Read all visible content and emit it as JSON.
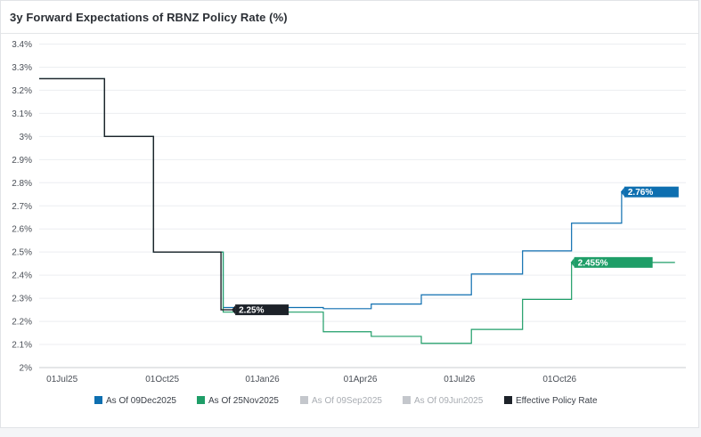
{
  "chart_data": {
    "type": "line",
    "title": "3y Forward Expectations of RBNZ Policy Rate (%)",
    "y_ticks": [
      "3.4%",
      "3.3%",
      "3.2%",
      "3.1%",
      "3%",
      "2.9%",
      "2.8%",
      "2.7%",
      "2.6%",
      "2.5%",
      "2.4%",
      "2.3%",
      "2.2%",
      "2.1%",
      "2%"
    ],
    "ylim": [
      2.0,
      3.4
    ],
    "x_ticks": [
      "01Jul25",
      "01Oct25",
      "01Jan26",
      "01Apr26",
      "01Jul26",
      "01Oct26"
    ],
    "x_tick_dates": [
      "2025-07-01",
      "2025-10-01",
      "2026-01-01",
      "2026-04-01",
      "2026-07-01",
      "2026-10-01"
    ],
    "xlim": [
      "2025-06-10",
      "2027-01-25"
    ],
    "grid": true,
    "legend_position": "bottom",
    "series": [
      {
        "name": "As Of 09Dec2025",
        "color": "#0e6fb0",
        "visible": true,
        "x": [
          "2025-06-10",
          "2025-08-09",
          "2025-09-23",
          "2025-09-23",
          "2025-11-24",
          "2025-11-26",
          "2026-02-15",
          "2026-02-26",
          "2026-04-11",
          "2026-05-27",
          "2026-07-12",
          "2026-08-28",
          "2026-10-12",
          "2026-11-27",
          "2027-01-15"
        ],
        "y": [
          3.25,
          3.0,
          3.0,
          2.5,
          2.5,
          2.26,
          2.26,
          2.255,
          2.275,
          2.315,
          2.405,
          2.505,
          2.625,
          2.76,
          2.76
        ],
        "end_label": "2.76%"
      },
      {
        "name": "As Of 25Nov2025",
        "color": "#1f9e68",
        "visible": true,
        "x": [
          "2025-06-10",
          "2025-08-09",
          "2025-09-23",
          "2025-09-23",
          "2025-11-24",
          "2025-11-26",
          "2026-02-15",
          "2026-02-26",
          "2026-04-11",
          "2026-05-27",
          "2026-07-12",
          "2026-08-28",
          "2026-10-12",
          "2026-11-27",
          "2027-01-15"
        ],
        "y": [
          3.25,
          3.0,
          3.0,
          2.5,
          2.5,
          2.24,
          2.24,
          2.155,
          2.135,
          2.105,
          2.165,
          2.295,
          2.455,
          2.455,
          2.455
        ],
        "end_label": "2.455%"
      },
      {
        "name": "As Of 09Sep2025",
        "color": "#c4c7cc",
        "visible": false
      },
      {
        "name": "As Of 09Jun2025",
        "color": "#c4c7cc",
        "visible": false
      },
      {
        "name": "Effective Policy Rate",
        "color": "#1d2229",
        "visible": true,
        "x": [
          "2025-06-10",
          "2025-08-09",
          "2025-08-09",
          "2025-09-23",
          "2025-09-23",
          "2025-11-24",
          "2025-11-24",
          "2025-12-10"
        ],
        "y": [
          3.25,
          3.25,
          3.0,
          3.0,
          2.5,
          2.5,
          2.25,
          2.25
        ],
        "end_label": "2.25%"
      }
    ]
  }
}
